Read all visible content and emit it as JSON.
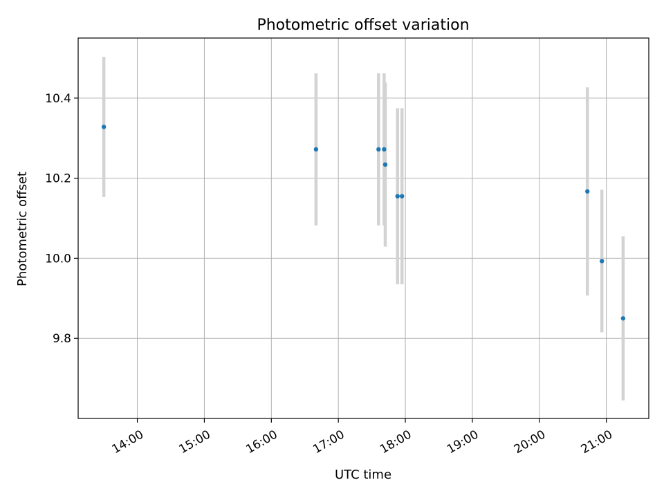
{
  "chart_data": {
    "type": "scatter",
    "title": "Photometric offset variation",
    "xlabel": "UTC time",
    "ylabel": "Photometric offset",
    "grid": true,
    "x_ticks": [
      "14:00",
      "15:00",
      "16:00",
      "17:00",
      "18:00",
      "19:00",
      "20:00",
      "21:00"
    ],
    "y_ticks": [
      9.8,
      10.0,
      10.2,
      10.4
    ],
    "xlim": [
      "13:07",
      "21:38"
    ],
    "ylim": [
      9.6,
      10.55
    ],
    "colors": {
      "point": "#1f77b4",
      "errorbar": "#d3d3d3",
      "grid": "#b0b0b0"
    },
    "series": [
      {
        "points": [
          {
            "x": "13:30",
            "y": 10.328,
            "yerr": 0.175
          },
          {
            "x": "16:40",
            "y": 10.272,
            "yerr": 0.19
          },
          {
            "x": "17:36",
            "y": 10.272,
            "yerr": 0.19
          },
          {
            "x": "17:41",
            "y": 10.272,
            "yerr": 0.19
          },
          {
            "x": "17:42",
            "y": 10.234,
            "yerr": 0.205
          },
          {
            "x": "17:53",
            "y": 10.155,
            "yerr": 0.22
          },
          {
            "x": "17:57",
            "y": 10.155,
            "yerr": 0.22
          },
          {
            "x": "20:43",
            "y": 10.167,
            "yerr": 0.26
          },
          {
            "x": "20:56",
            "y": 9.993,
            "yerr": 0.178
          },
          {
            "x": "21:15",
            "y": 9.85,
            "yerr": 0.205
          }
        ]
      }
    ]
  }
}
